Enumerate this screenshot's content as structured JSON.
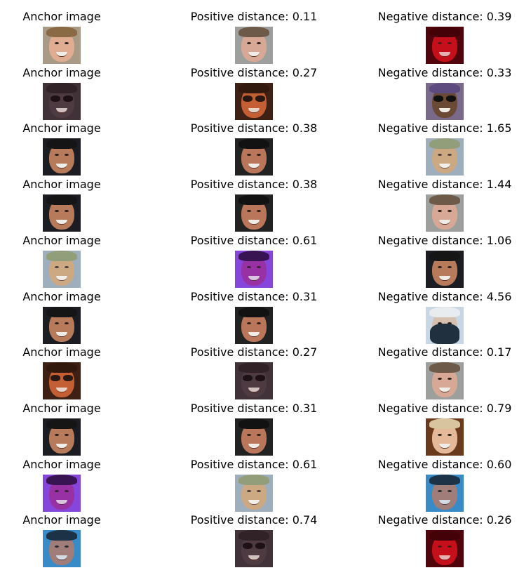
{
  "rows": [
    {
      "anchor": {
        "label": "Anchor image",
        "icon": "face-photo-smiling-light-hair",
        "variant": "a"
      },
      "positive": {
        "label": "Positive distance: 0.11",
        "icon": "face-photo-smiling",
        "variant": "b"
      },
      "negative": {
        "label": "Negative distance: 0.39",
        "icon": "face-photo-red-tint",
        "variant": "red"
      }
    },
    {
      "anchor": {
        "label": "Anchor image",
        "icon": "face-photo-dark-glasses",
        "variant": "dark"
      },
      "positive": {
        "label": "Positive distance: 0.27",
        "icon": "face-photo-sunglasses",
        "variant": "sun"
      },
      "negative": {
        "label": "Negative distance: 0.33",
        "icon": "face-photo-sunglasses-bandana",
        "variant": "bandana"
      }
    },
    {
      "anchor": {
        "label": "Anchor image",
        "icon": "face-photo-smiling-dark-hair",
        "variant": "c"
      },
      "positive": {
        "label": "Positive distance: 0.38",
        "icon": "face-photo-smiling-headband",
        "variant": "c2"
      },
      "negative": {
        "label": "Negative distance: 1.65",
        "icon": "face-photo-blurry",
        "variant": "blur"
      }
    },
    {
      "anchor": {
        "label": "Anchor image",
        "icon": "face-photo-smiling-dark-hair",
        "variant": "c"
      },
      "positive": {
        "label": "Positive distance: 0.38",
        "icon": "face-photo-smiling-headband",
        "variant": "c2"
      },
      "negative": {
        "label": "Negative distance: 1.44",
        "icon": "face-photo-smiling",
        "variant": "b"
      }
    },
    {
      "anchor": {
        "label": "Anchor image",
        "icon": "face-photo-blurry",
        "variant": "blur"
      },
      "positive": {
        "label": "Positive distance: 0.61",
        "icon": "face-photo-purple-filter",
        "variant": "purple"
      },
      "negative": {
        "label": "Negative distance: 1.06",
        "icon": "face-photo-smiling-dark-hair",
        "variant": "c"
      }
    },
    {
      "anchor": {
        "label": "Anchor image",
        "icon": "face-photo-smiling-dark-hair",
        "variant": "c"
      },
      "positive": {
        "label": "Positive distance: 0.31",
        "icon": "face-photo-smiling-dark-hair",
        "variant": "c2"
      },
      "negative": {
        "label": "Negative distance: 4.56",
        "icon": "face-photo-cap-mask",
        "variant": "mask"
      }
    },
    {
      "anchor": {
        "label": "Anchor image",
        "icon": "face-photo-sunglasses",
        "variant": "sun"
      },
      "positive": {
        "label": "Positive distance: 0.27",
        "icon": "face-photo-dark-glasses",
        "variant": "dark"
      },
      "negative": {
        "label": "Negative distance: 0.17",
        "icon": "face-photo-smiling",
        "variant": "b"
      }
    },
    {
      "anchor": {
        "label": "Anchor image",
        "icon": "face-photo-smiling-dark-hair",
        "variant": "c"
      },
      "positive": {
        "label": "Positive distance: 0.31",
        "icon": "face-photo-smiling-dark-hair",
        "variant": "c2"
      },
      "negative": {
        "label": "Negative distance: 0.79",
        "icon": "face-photo-long-hair",
        "variant": "long"
      }
    },
    {
      "anchor": {
        "label": "Anchor image",
        "icon": "face-photo-purple-filter",
        "variant": "purple"
      },
      "positive": {
        "label": "Positive distance: 0.61",
        "icon": "face-photo-blurry",
        "variant": "blur"
      },
      "negative": {
        "label": "Negative distance: 0.60",
        "icon": "face-photo-blue-background",
        "variant": "blue"
      }
    },
    {
      "anchor": {
        "label": "Anchor image",
        "icon": "face-photo-blue-background",
        "variant": "blue"
      },
      "positive": {
        "label": "Positive distance: 0.74",
        "icon": "face-photo-dark-glasses",
        "variant": "dark"
      },
      "negative": {
        "label": "Negative distance: 0.26",
        "icon": "face-photo-red-tint",
        "variant": "red"
      }
    }
  ],
  "variants": {
    "a": {
      "bg": "#a99a86",
      "skin": "#e0ad92",
      "hair": "#8a6a45",
      "shade": "rgba(0,0,0,0)",
      "glasses": false,
      "mask": false
    },
    "b": {
      "bg": "#9c9f9c",
      "skin": "#d8a897",
      "hair": "#6e5a48",
      "shade": "rgba(0,0,0,0)",
      "glasses": false,
      "mask": false
    },
    "red": {
      "bg": "#2a0608",
      "skin": "#c4141e",
      "hair": "#1a0204",
      "shade": "rgba(200,0,20,0.25)",
      "glasses": false,
      "mask": false
    },
    "dark": {
      "bg": "#3d3a3c",
      "skin": "#4e4548",
      "hair": "#2a2628",
      "shade": "rgba(80,20,40,0.2)",
      "glasses": true,
      "mask": false
    },
    "sun": {
      "bg": "#2a1b14",
      "skin": "#c7633a",
      "hair": "#1a120e",
      "shade": "rgba(180,70,20,0.15)",
      "glasses": true,
      "mask": false
    },
    "bandana": {
      "bg": "#7a6a8a",
      "skin": "#6b4a35",
      "hair": "#5d4a7e",
      "shade": "rgba(0,0,0,0)",
      "glasses": true,
      "mask": false
    },
    "c": {
      "bg": "#1b1d22",
      "skin": "#b77b5b",
      "hair": "#151515",
      "shade": "rgba(0,0,0,0)",
      "glasses": false,
      "mask": false
    },
    "c2": {
      "bg": "#222222",
      "skin": "#b9765a",
      "hair": "#121212",
      "shade": "rgba(0,0,0,0)",
      "glasses": false,
      "mask": false
    },
    "blur": {
      "bg": "#8ea0b2",
      "skin": "#c39a6d",
      "hair": "#7f8d62",
      "shade": "rgba(255,255,255,0.15)",
      "glasses": false,
      "mask": false
    },
    "purple": {
      "bg": "#8a4de0",
      "skin": "#a0349a",
      "hair": "#2a0f35",
      "shade": "rgba(120,40,200,0.2)",
      "glasses": false,
      "mask": false
    },
    "mask": {
      "bg": "#c9d6e4",
      "skin": "#d6c0b0",
      "hair": "#e8ecef",
      "shade": "rgba(0,0,0,0)",
      "glasses": false,
      "mask": true
    },
    "long": {
      "bg": "#6b3a1c",
      "skin": "#e6b89a",
      "hair": "#d8c5a0",
      "shade": "rgba(0,0,0,0)",
      "glasses": false,
      "mask": false
    },
    "blue": {
      "bg": "#3c8fc7",
      "skin": "#b57e6c",
      "hair": "#1a2630",
      "shade": "rgba(40,120,200,0.15)",
      "glasses": false,
      "mask": false
    }
  }
}
